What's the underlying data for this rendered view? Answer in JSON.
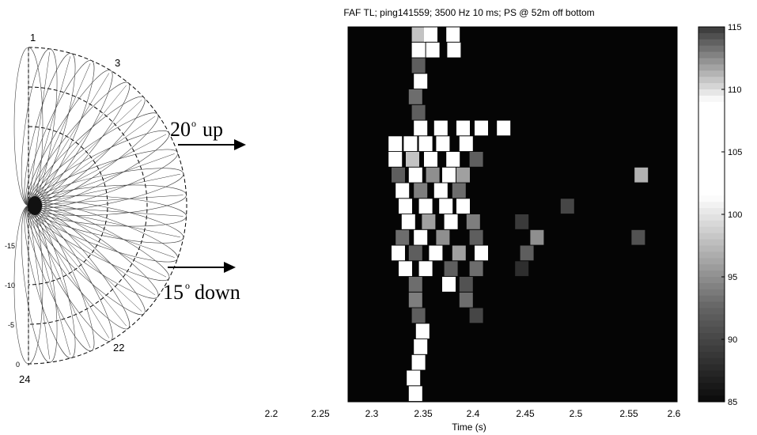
{
  "polar_diagram": {
    "beam_labels": {
      "first": "1",
      "third": "3",
      "twenty_second": "22",
      "last": "24"
    },
    "radial_ticks": [
      "-15",
      "-10",
      "-5",
      "0"
    ],
    "beam_count": 24
  },
  "annotations": {
    "up_number": "20",
    "up_word": "up",
    "down_number": "15",
    "down_word": "down",
    "degree_mark": "o"
  },
  "chart_data": {
    "type": "heatmap",
    "title": "FAF TL; ping141559; 3500 Hz 10 ms; PS @ 52m off bottom",
    "xlabel": "Time (s)",
    "ylabel": "",
    "x_tick_labels": [
      "2.2",
      "2.25",
      "2.3",
      "2.35",
      "2.4",
      "2.45",
      "2.5",
      "2.55",
      "2.6"
    ],
    "xlim": [
      2.275,
      2.6
    ],
    "beam_rows": 24,
    "colorbar": {
      "ticks": [
        "115",
        "110",
        "105",
        "100",
        "95",
        "90",
        "85"
      ],
      "range": [
        85,
        115
      ]
    },
    "cells": [
      {
        "t": 2.338,
        "b": 1,
        "v": 98
      },
      {
        "t": 2.35,
        "b": 1,
        "v": 108
      },
      {
        "t": 2.372,
        "b": 1,
        "v": 102
      },
      {
        "t": 2.338,
        "b": 2,
        "v": 105
      },
      {
        "t": 2.352,
        "b": 2,
        "v": 106
      },
      {
        "t": 2.373,
        "b": 2,
        "v": 107
      },
      {
        "t": 2.338,
        "b": 3,
        "v": 92
      },
      {
        "t": 2.34,
        "b": 4,
        "v": 107
      },
      {
        "t": 2.335,
        "b": 5,
        "v": 93
      },
      {
        "t": 2.338,
        "b": 6,
        "v": 92
      },
      {
        "t": 2.34,
        "b": 7,
        "v": 106
      },
      {
        "t": 2.36,
        "b": 7,
        "v": 104
      },
      {
        "t": 2.382,
        "b": 7,
        "v": 107
      },
      {
        "t": 2.4,
        "b": 7,
        "v": 106
      },
      {
        "t": 2.422,
        "b": 7,
        "v": 103
      },
      {
        "t": 2.315,
        "b": 8,
        "v": 106
      },
      {
        "t": 2.33,
        "b": 8,
        "v": 107
      },
      {
        "t": 2.345,
        "b": 8,
        "v": 108
      },
      {
        "t": 2.362,
        "b": 8,
        "v": 105
      },
      {
        "t": 2.385,
        "b": 8,
        "v": 106
      },
      {
        "t": 2.315,
        "b": 9,
        "v": 107
      },
      {
        "t": 2.332,
        "b": 9,
        "v": 98
      },
      {
        "t": 2.35,
        "b": 9,
        "v": 107
      },
      {
        "t": 2.372,
        "b": 9,
        "v": 104
      },
      {
        "t": 2.395,
        "b": 9,
        "v": 92
      },
      {
        "t": 2.318,
        "b": 10,
        "v": 92
      },
      {
        "t": 2.335,
        "b": 10,
        "v": 107
      },
      {
        "t": 2.352,
        "b": 10,
        "v": 95
      },
      {
        "t": 2.368,
        "b": 10,
        "v": 108
      },
      {
        "t": 2.382,
        "b": 10,
        "v": 96
      },
      {
        "t": 2.558,
        "b": 10,
        "v": 97
      },
      {
        "t": 2.322,
        "b": 11,
        "v": 106
      },
      {
        "t": 2.34,
        "b": 11,
        "v": 94
      },
      {
        "t": 2.36,
        "b": 11,
        "v": 107
      },
      {
        "t": 2.378,
        "b": 11,
        "v": 93
      },
      {
        "t": 2.325,
        "b": 12,
        "v": 104
      },
      {
        "t": 2.345,
        "b": 12,
        "v": 108
      },
      {
        "t": 2.365,
        "b": 12,
        "v": 102
      },
      {
        "t": 2.382,
        "b": 12,
        "v": 107
      },
      {
        "t": 2.485,
        "b": 12,
        "v": 90
      },
      {
        "t": 2.328,
        "b": 13,
        "v": 107
      },
      {
        "t": 2.348,
        "b": 13,
        "v": 96
      },
      {
        "t": 2.37,
        "b": 13,
        "v": 106
      },
      {
        "t": 2.392,
        "b": 13,
        "v": 94
      },
      {
        "t": 2.44,
        "b": 13,
        "v": 89
      },
      {
        "t": 2.322,
        "b": 14,
        "v": 93
      },
      {
        "t": 2.34,
        "b": 14,
        "v": 107
      },
      {
        "t": 2.362,
        "b": 14,
        "v": 95
      },
      {
        "t": 2.395,
        "b": 14,
        "v": 92
      },
      {
        "t": 2.455,
        "b": 14,
        "v": 95
      },
      {
        "t": 2.555,
        "b": 14,
        "v": 91
      },
      {
        "t": 2.318,
        "b": 15,
        "v": 106
      },
      {
        "t": 2.335,
        "b": 15,
        "v": 92
      },
      {
        "t": 2.355,
        "b": 15,
        "v": 107
      },
      {
        "t": 2.378,
        "b": 15,
        "v": 96
      },
      {
        "t": 2.4,
        "b": 15,
        "v": 106
      },
      {
        "t": 2.445,
        "b": 15,
        "v": 92
      },
      {
        "t": 2.325,
        "b": 16,
        "v": 105
      },
      {
        "t": 2.345,
        "b": 16,
        "v": 107
      },
      {
        "t": 2.37,
        "b": 16,
        "v": 92
      },
      {
        "t": 2.395,
        "b": 16,
        "v": 93
      },
      {
        "t": 2.44,
        "b": 16,
        "v": 88
      },
      {
        "t": 2.335,
        "b": 17,
        "v": 93
      },
      {
        "t": 2.368,
        "b": 17,
        "v": 106
      },
      {
        "t": 2.385,
        "b": 17,
        "v": 91
      },
      {
        "t": 2.335,
        "b": 18,
        "v": 94
      },
      {
        "t": 2.385,
        "b": 18,
        "v": 93
      },
      {
        "t": 2.338,
        "b": 19,
        "v": 92
      },
      {
        "t": 2.395,
        "b": 19,
        "v": 90
      },
      {
        "t": 2.342,
        "b": 20,
        "v": 107
      },
      {
        "t": 2.34,
        "b": 21,
        "v": 106
      },
      {
        "t": 2.338,
        "b": 22,
        "v": 105
      },
      {
        "t": 2.333,
        "b": 23,
        "v": 106
      },
      {
        "t": 2.335,
        "b": 24,
        "v": 107
      }
    ]
  }
}
